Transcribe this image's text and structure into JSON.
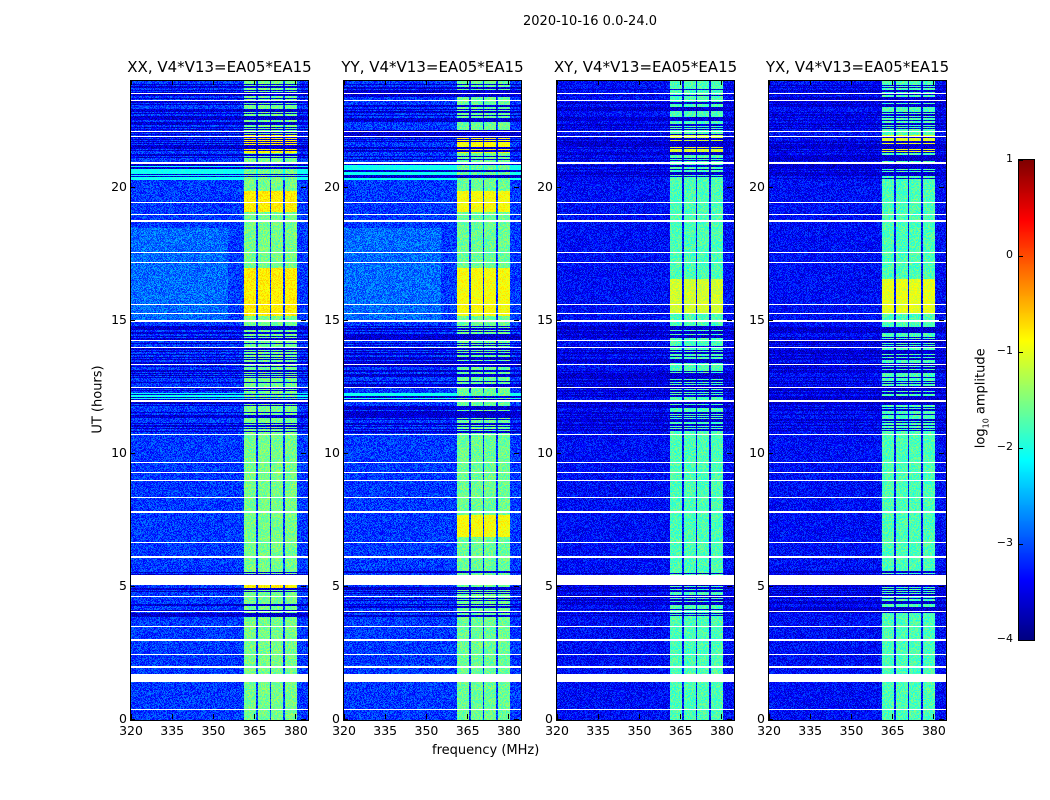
{
  "chart_data": {
    "type": "heatmap",
    "suptitle": "2020-10-16 0.0-24.0",
    "xlabel": "frequency (MHz)",
    "ylabel": "UT (hours)",
    "xlim": [
      320,
      384.4
    ],
    "ylim": [
      0,
      24
    ],
    "xticks": [
      320,
      335,
      350,
      365,
      380
    ],
    "yticks": [
      0,
      5,
      10,
      15,
      20
    ],
    "colorbar": {
      "label": "log10 amplitude",
      "label_main": "log",
      "label_sub": "10",
      "label_rest": " amplitude",
      "range": [
        -4,
        1
      ],
      "ticks": [
        1,
        0,
        -1,
        -2,
        -3,
        -4
      ],
      "tick_labels": [
        "1",
        "0",
        "−1",
        "−2",
        "−3",
        "−4"
      ],
      "colormap": "jet"
    },
    "flagged_hours": [
      [
        0.38,
        0.44
      ],
      [
        1.46,
        1.76
      ],
      [
        1.98,
        2.03
      ],
      [
        2.45,
        2.5
      ],
      [
        3.0,
        3.06
      ],
      [
        3.5,
        3.55
      ],
      [
        4.06,
        4.1
      ],
      [
        4.62,
        4.67
      ],
      [
        5.1,
        5.47
      ],
      [
        6.12,
        6.16
      ],
      [
        6.68,
        6.72
      ],
      [
        7.81,
        7.85
      ],
      [
        8.37,
        8.41
      ],
      [
        9.01,
        9.05
      ],
      [
        9.31,
        9.35
      ],
      [
        9.68,
        9.72
      ],
      [
        10.73,
        10.77
      ],
      [
        11.98,
        12.02
      ],
      [
        12.49,
        12.53
      ],
      [
        13.35,
        13.4
      ],
      [
        13.98,
        14.02
      ],
      [
        14.25,
        14.3
      ],
      [
        14.97,
        15.05
      ],
      [
        15.26,
        15.3
      ],
      [
        15.6,
        15.65
      ],
      [
        17.17,
        17.21
      ],
      [
        17.55,
        17.59
      ],
      [
        18.74,
        18.78
      ],
      [
        18.98,
        19.02
      ],
      [
        19.42,
        19.46
      ],
      [
        20.92,
        20.97
      ],
      [
        21.93,
        21.97
      ],
      [
        22.11,
        22.15
      ],
      [
        23.28,
        23.32
      ],
      [
        23.54,
        23.58
      ]
    ],
    "low_amplitude_hours": [
      [
        10.8,
        14.8
      ],
      [
        3.9,
        5.6
      ],
      [
        20.3,
        20.9
      ],
      [
        21.0,
        23.9
      ]
    ],
    "rfi_bands_mhz": [
      [
        361,
        365.3
      ],
      [
        365.9,
        370.3
      ],
      [
        370.9,
        375.3
      ],
      [
        375.9,
        380.3
      ]
    ],
    "series": [
      {
        "name": "XX, V4*V13=EA05*EA15",
        "background": -3.1,
        "rfi_level": -1.55,
        "hot_hours": [
          [
            15.2,
            17.0
          ],
          [
            19.1,
            19.9
          ],
          [
            21.3,
            22.0
          ],
          [
            4.9,
            5.1
          ]
        ],
        "hot_level": -0.8,
        "cyan_hours": [
          [
            20.3,
            20.9
          ],
          [
            12.0,
            12.3
          ]
        ]
      },
      {
        "name": "YY, V4*V13=EA05*EA15",
        "background": -3.1,
        "rfi_level": -1.6,
        "hot_hours": [
          [
            15.2,
            17.0
          ],
          [
            19.1,
            19.9
          ],
          [
            21.3,
            22.0
          ],
          [
            6.9,
            7.7
          ]
        ],
        "hot_level": -0.9,
        "cyan_hours": [
          [
            20.3,
            20.9
          ],
          [
            12.0,
            12.3
          ]
        ]
      },
      {
        "name": "XY, V4*V13=EA05*EA15",
        "background": -3.35,
        "rfi_level": -1.75,
        "hot_hours": [
          [
            15.3,
            16.6
          ],
          [
            21.3,
            22.0
          ]
        ],
        "hot_level": -1.1,
        "cyan_hours": []
      },
      {
        "name": "YX, V4*V13=EA05*EA15",
        "background": -3.35,
        "rfi_level": -1.75,
        "hot_hours": [
          [
            15.3,
            16.6
          ],
          [
            21.3,
            22.0
          ]
        ],
        "hot_level": -1.0,
        "cyan_hours": []
      }
    ]
  }
}
